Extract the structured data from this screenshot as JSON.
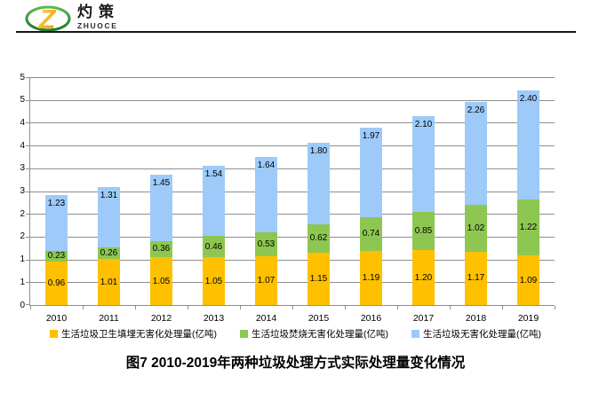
{
  "brand": {
    "name_cn": "灼策",
    "name_en": "ZHUOCE"
  },
  "title": "图7  2010-2019年两种垃圾处理方式实际处理量变化情况",
  "colors": {
    "landfill": "#FFC000",
    "incineration": "#8DC751",
    "total": "#9DCAF8",
    "grid": "#8E8E8E",
    "header_rule": "#141414"
  },
  "chart_data": {
    "type": "bar",
    "stacked": true,
    "title": "图7  2010-2019年两种垃圾处理方式实际处理量变化情况",
    "categories": [
      "2010",
      "2011",
      "2012",
      "2013",
      "2014",
      "2015",
      "2016",
      "2017",
      "2018",
      "2019"
    ],
    "series": [
      {
        "name": "生活垃圾卫生填埋无害化处理量(亿吨)",
        "color_key": "landfill",
        "label_position": "center",
        "values": [
          0.96,
          1.01,
          1.05,
          1.05,
          1.07,
          1.15,
          1.19,
          1.2,
          1.17,
          1.09
        ]
      },
      {
        "name": "生活垃圾焚烧无害化处理量(亿吨)",
        "color_key": "incineration",
        "label_position": "center",
        "values": [
          0.23,
          0.26,
          0.36,
          0.46,
          0.53,
          0.62,
          0.74,
          0.85,
          1.02,
          1.22
        ]
      },
      {
        "name": "生活垃圾无害化处理量(亿吨)",
        "color_key": "total",
        "label_position": "inside-end",
        "values": [
          1.23,
          1.31,
          1.45,
          1.54,
          1.64,
          1.8,
          1.97,
          2.1,
          2.26,
          2.4
        ]
      }
    ],
    "ylim": [
      0,
      5
    ],
    "y_tick_step": 0.5,
    "y_tick_labels_bottom_to_top": [
      "0",
      "1",
      "1",
      "2",
      "2",
      "3",
      "3",
      "4",
      "4",
      "5",
      "5"
    ],
    "grid": true,
    "legend_position": "bottom",
    "value_label_decimals": 2
  }
}
